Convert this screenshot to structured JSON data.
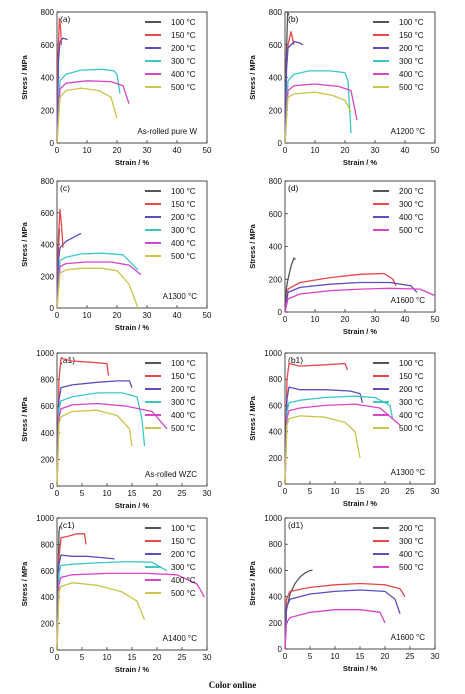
{
  "caption": "Color online",
  "chart_data": [
    {
      "type": "line",
      "panel_label": "(a)",
      "annotation": "As-rolled pure W",
      "xlabel": "Strain / %",
      "ylabel": "Stress / MPa",
      "xlim": [
        0,
        50
      ],
      "ylim": [
        0,
        800
      ],
      "xticks": [
        0,
        10,
        20,
        30,
        40,
        50
      ],
      "yticks": [
        0,
        200,
        400,
        600,
        800
      ],
      "legend": "top-right",
      "series": [
        {
          "name": "100 °C",
          "color": "#555555",
          "x": [
            0,
            0.2,
            0.4
          ],
          "y": [
            0,
            300,
            450
          ]
        },
        {
          "name": "150 °C",
          "color": "#e8474a",
          "x": [
            0,
            0.3,
            0.8,
            1.2,
            1.5
          ],
          "y": [
            0,
            500,
            760,
            700,
            600
          ]
        },
        {
          "name": "200 °C",
          "color": "#5a4fc0",
          "x": [
            0,
            0.5,
            1,
            2,
            3,
            3.5
          ],
          "y": [
            0,
            500,
            620,
            640,
            635,
            630
          ]
        },
        {
          "name": "300 °C",
          "color": "#3cc7c7",
          "x": [
            0,
            1,
            3,
            8,
            15,
            19,
            20,
            21
          ],
          "y": [
            0,
            380,
            420,
            445,
            450,
            440,
            420,
            300
          ]
        },
        {
          "name": "400 °C",
          "color": "#d845c9",
          "x": [
            0,
            1,
            3,
            10,
            18,
            22,
            24
          ],
          "y": [
            0,
            330,
            365,
            380,
            375,
            350,
            240
          ]
        },
        {
          "name": "500 °C",
          "color": "#c9c44a",
          "x": [
            0,
            1,
            3,
            8,
            14,
            18,
            20
          ],
          "y": [
            0,
            280,
            320,
            335,
            320,
            280,
            150
          ]
        }
      ]
    },
    {
      "type": "line",
      "panel_label": "(b)",
      "annotation": "A1200 °C",
      "xlabel": "Strain / %",
      "ylabel": "Stress / MPa",
      "xlim": [
        0,
        50
      ],
      "ylim": [
        0,
        800
      ],
      "xticks": [
        0,
        10,
        20,
        30,
        40,
        50
      ],
      "yticks": [
        0,
        200,
        400,
        600,
        800
      ],
      "legend": "top-right",
      "series": [
        {
          "name": "100 °C",
          "color": "#555555",
          "x": [
            0,
            0.4,
            0.9,
            1.3
          ],
          "y": [
            0,
            500,
            800,
            780
          ]
        },
        {
          "name": "150 °C",
          "color": "#e8474a",
          "x": [
            0,
            0.5,
            1,
            2,
            2.5,
            3
          ],
          "y": [
            0,
            450,
            600,
            680,
            640,
            600
          ]
        },
        {
          "name": "200 °C",
          "color": "#5a4fc0",
          "x": [
            0,
            0.5,
            1,
            3,
            5,
            6
          ],
          "y": [
            0,
            450,
            580,
            620,
            610,
            600
          ]
        },
        {
          "name": "300 °C",
          "color": "#3cc7c7",
          "x": [
            0,
            1,
            3,
            8,
            15,
            20,
            21,
            22
          ],
          "y": [
            0,
            380,
            420,
            440,
            440,
            430,
            380,
            60
          ]
        },
        {
          "name": "400 °C",
          "color": "#d845c9",
          "x": [
            0,
            1,
            3,
            10,
            18,
            22,
            24
          ],
          "y": [
            0,
            320,
            350,
            360,
            345,
            320,
            140
          ]
        },
        {
          "name": "500 °C",
          "color": "#c9c44a",
          "x": [
            0,
            1,
            3,
            10,
            16,
            20,
            22
          ],
          "y": [
            0,
            280,
            300,
            310,
            290,
            260,
            190
          ]
        }
      ]
    },
    {
      "type": "line",
      "panel_label": "(c)",
      "annotation": "A1300 °C",
      "xlabel": "Strain / %",
      "ylabel": "Stress / MPa",
      "xlim": [
        0,
        50
      ],
      "ylim": [
        0,
        800
      ],
      "xticks": [
        0,
        10,
        20,
        30,
        40,
        50
      ],
      "yticks": [
        0,
        200,
        400,
        600,
        800
      ],
      "legend": "top-right",
      "series": [
        {
          "name": "100 °C",
          "color": "#555555",
          "x": [
            0,
            0.4,
            0.8
          ],
          "y": [
            0,
            350,
            500
          ]
        },
        {
          "name": "150 °C",
          "color": "#e8474a",
          "x": [
            0,
            0.5,
            1,
            1.5,
            2
          ],
          "y": [
            0,
            450,
            620,
            520,
            380
          ]
        },
        {
          "name": "200 °C",
          "color": "#5a4fc0",
          "x": [
            0,
            0.5,
            1,
            3,
            6,
            8
          ],
          "y": [
            0,
            300,
            380,
            420,
            450,
            470
          ]
        },
        {
          "name": "300 °C",
          "color": "#3cc7c7",
          "x": [
            0,
            1,
            3,
            8,
            15,
            22,
            27
          ],
          "y": [
            0,
            300,
            320,
            340,
            345,
            335,
            240
          ]
        },
        {
          "name": "400 °C",
          "color": "#d845c9",
          "x": [
            0,
            1,
            3,
            10,
            18,
            24,
            28
          ],
          "y": [
            0,
            260,
            280,
            290,
            290,
            270,
            210
          ]
        },
        {
          "name": "500 °C",
          "color": "#c9c44a",
          "x": [
            0,
            1,
            3,
            8,
            15,
            20,
            24,
            27
          ],
          "y": [
            0,
            220,
            240,
            250,
            250,
            235,
            150,
            0
          ]
        }
      ]
    },
    {
      "type": "line",
      "panel_label": "(d)",
      "annotation": "A1600 °C",
      "xlabel": "Strain / %",
      "ylabel": "Stress / MPa",
      "xlim": [
        0,
        50
      ],
      "ylim": [
        0,
        800
      ],
      "xticks": [
        0,
        10,
        20,
        30,
        40,
        50
      ],
      "yticks": [
        0,
        200,
        400,
        600,
        800
      ],
      "legend": "top-right",
      "series": [
        {
          "name": "200 °C",
          "color": "#555555",
          "x": [
            0,
            0.5,
            1,
            2,
            3,
            3.5
          ],
          "y": [
            0,
            150,
            200,
            280,
            330,
            320
          ]
        },
        {
          "name": "300 °C",
          "color": "#e8474a",
          "x": [
            0,
            1,
            5,
            15,
            25,
            33,
            36,
            37
          ],
          "y": [
            0,
            140,
            180,
            210,
            230,
            235,
            200,
            160
          ]
        },
        {
          "name": "400 °C",
          "color": "#5a4fc0",
          "x": [
            0,
            1,
            5,
            15,
            25,
            35,
            42,
            44
          ],
          "y": [
            0,
            120,
            150,
            170,
            180,
            180,
            160,
            120
          ]
        },
        {
          "name": "500 °C",
          "color": "#d845c9",
          "x": [
            0,
            1,
            5,
            15,
            25,
            35,
            45,
            50
          ],
          "y": [
            0,
            80,
            110,
            130,
            140,
            145,
            140,
            100
          ]
        }
      ]
    },
    {
      "type": "line",
      "panel_label": "(a1)",
      "annotation": "As-rolled WZC",
      "xlabel": "Strain / %",
      "ylabel": "Stress / MPa",
      "xlim": [
        0,
        30
      ],
      "ylim": [
        0,
        1000
      ],
      "xticks": [
        0,
        5,
        10,
        15,
        20,
        25,
        30
      ],
      "yticks": [
        0,
        200,
        400,
        600,
        800,
        1000
      ],
      "legend": "top-right",
      "series": [
        {
          "name": "100 °C",
          "color": "#555555",
          "x": [
            0,
            0.2,
            0.4
          ],
          "y": [
            0,
            400,
            600
          ]
        },
        {
          "name": "150 °C",
          "color": "#e8474a",
          "x": [
            0,
            0.4,
            0.8,
            3,
            7,
            10,
            10.3
          ],
          "y": [
            0,
            800,
            960,
            940,
            930,
            920,
            830
          ]
        },
        {
          "name": "200 °C",
          "color": "#5a4fc0",
          "x": [
            0,
            0.4,
            0.8,
            3,
            8,
            12,
            14.5,
            15
          ],
          "y": [
            0,
            650,
            740,
            760,
            780,
            790,
            790,
            740
          ]
        },
        {
          "name": "300 °C",
          "color": "#3cc7c7",
          "x": [
            0,
            0.4,
            0.8,
            3,
            8,
            13,
            16,
            17,
            17.5
          ],
          "y": [
            0,
            580,
            640,
            670,
            700,
            700,
            670,
            500,
            300
          ]
        },
        {
          "name": "400 °C",
          "color": "#d845c9",
          "x": [
            0,
            0.4,
            0.8,
            3,
            8,
            14,
            19,
            22
          ],
          "y": [
            0,
            520,
            580,
            610,
            620,
            600,
            560,
            430
          ]
        },
        {
          "name": "500 °C",
          "color": "#c9c44a",
          "x": [
            0,
            0.4,
            0.8,
            3,
            8,
            12,
            14.5,
            15
          ],
          "y": [
            0,
            470,
            520,
            560,
            570,
            530,
            430,
            300
          ]
        }
      ]
    },
    {
      "type": "line",
      "panel_label": "(b1)",
      "annotation": "A1300 °C",
      "xlabel": "Strain / %",
      "ylabel": "Stress / MPa",
      "xlim": [
        0,
        30
      ],
      "ylim": [
        0,
        1000
      ],
      "xticks": [
        0,
        5,
        10,
        15,
        20,
        25,
        30
      ],
      "yticks": [
        0,
        200,
        400,
        600,
        800,
        1000
      ],
      "legend": "top-right",
      "series": [
        {
          "name": "100 °C",
          "color": "#555555",
          "x": [
            0,
            0.2,
            0.4
          ],
          "y": [
            0,
            400,
            500
          ]
        },
        {
          "name": "150 °C",
          "color": "#e8474a",
          "x": [
            0,
            0.4,
            0.8,
            3,
            8,
            12,
            12.5
          ],
          "y": [
            0,
            800,
            920,
            900,
            910,
            920,
            870
          ]
        },
        {
          "name": "200 °C",
          "color": "#5a4fc0",
          "x": [
            0,
            0.4,
            0.8,
            3,
            8,
            13,
            15,
            15.5
          ],
          "y": [
            0,
            650,
            740,
            720,
            720,
            710,
            690,
            620
          ]
        },
        {
          "name": "300 °C",
          "color": "#3cc7c7",
          "x": [
            0,
            0.4,
            0.8,
            3,
            8,
            14,
            18,
            21,
            21.5
          ],
          "y": [
            0,
            550,
            620,
            640,
            660,
            670,
            660,
            600,
            500
          ]
        },
        {
          "name": "400 °C",
          "color": "#d845c9",
          "x": [
            0,
            0.4,
            0.8,
            3,
            8,
            14,
            19,
            23
          ],
          "y": [
            0,
            500,
            560,
            580,
            600,
            610,
            580,
            450
          ]
        },
        {
          "name": "500 °C",
          "color": "#c9c44a",
          "x": [
            0,
            0.4,
            0.8,
            3,
            8,
            12,
            14,
            15
          ],
          "y": [
            0,
            450,
            500,
            520,
            510,
            470,
            400,
            200
          ]
        }
      ]
    },
    {
      "type": "line",
      "panel_label": "(c1)",
      "annotation": "A1400 °C",
      "xlabel": "Strain / %",
      "ylabel": "Stress / MPa",
      "xlim": [
        0,
        30
      ],
      "ylim": [
        0,
        1000
      ],
      "xticks": [
        0,
        5,
        10,
        15,
        20,
        25,
        30
      ],
      "yticks": [
        0,
        200,
        400,
        600,
        800,
        1000
      ],
      "legend": "top-right",
      "series": [
        {
          "name": "100 °C",
          "color": "#555555",
          "x": [
            0,
            0.2,
            0.4,
            0.6
          ],
          "y": [
            0,
            500,
            900,
            940
          ]
        },
        {
          "name": "150 °C",
          "color": "#e8474a",
          "x": [
            0,
            0.4,
            0.8,
            2,
            4,
            5.5,
            5.8
          ],
          "y": [
            0,
            700,
            850,
            860,
            880,
            880,
            800
          ]
        },
        {
          "name": "200 °C",
          "color": "#5a4fc0",
          "x": [
            0,
            0.4,
            0.8,
            3,
            6,
            9,
            11.5
          ],
          "y": [
            0,
            650,
            720,
            710,
            710,
            700,
            690
          ]
        },
        {
          "name": "300 °C",
          "color": "#3cc7c7",
          "x": [
            0,
            0.4,
            0.8,
            3,
            8,
            14,
            19,
            22
          ],
          "y": [
            0,
            580,
            640,
            650,
            660,
            670,
            665,
            600
          ]
        },
        {
          "name": "400 °C",
          "color": "#d845c9",
          "x": [
            0,
            0.4,
            0.8,
            3,
            10,
            18,
            24,
            28,
            29.5
          ],
          "y": [
            0,
            500,
            550,
            570,
            580,
            580,
            570,
            500,
            400
          ]
        },
        {
          "name": "500 °C",
          "color": "#c9c44a",
          "x": [
            0,
            0.4,
            0.8,
            3,
            8,
            13,
            16,
            17.5
          ],
          "y": [
            0,
            440,
            480,
            510,
            490,
            440,
            370,
            230
          ]
        }
      ]
    },
    {
      "type": "line",
      "panel_label": "(d1)",
      "annotation": "A1600 °C",
      "xlabel": "Strain / %",
      "ylabel": "Stress / MPa",
      "xlim": [
        0,
        30
      ],
      "ylim": [
        0,
        1000
      ],
      "xticks": [
        0,
        5,
        10,
        15,
        20,
        25,
        30
      ],
      "yticks": [
        0,
        200,
        400,
        600,
        800,
        1000
      ],
      "legend": "top-right",
      "series": [
        {
          "name": "200 °C",
          "color": "#555555",
          "x": [
            0,
            0.3,
            1,
            2,
            3,
            4,
            5,
            5.5
          ],
          "y": [
            0,
            300,
            420,
            500,
            550,
            580,
            600,
            600
          ]
        },
        {
          "name": "300 °C",
          "color": "#e8474a",
          "x": [
            0,
            0.3,
            1,
            5,
            10,
            15,
            20,
            23,
            24
          ],
          "y": [
            0,
            380,
            440,
            470,
            490,
            500,
            490,
            460,
            400
          ]
        },
        {
          "name": "400 °C",
          "color": "#5a4fc0",
          "x": [
            0,
            0.3,
            1,
            5,
            10,
            15,
            20,
            22,
            23
          ],
          "y": [
            0,
            320,
            380,
            420,
            440,
            450,
            440,
            380,
            270
          ]
        },
        {
          "name": "500 °C",
          "color": "#d845c9",
          "x": [
            0,
            0.3,
            1,
            5,
            10,
            15,
            19,
            20
          ],
          "y": [
            0,
            200,
            240,
            280,
            300,
            300,
            280,
            200
          ]
        }
      ]
    }
  ]
}
